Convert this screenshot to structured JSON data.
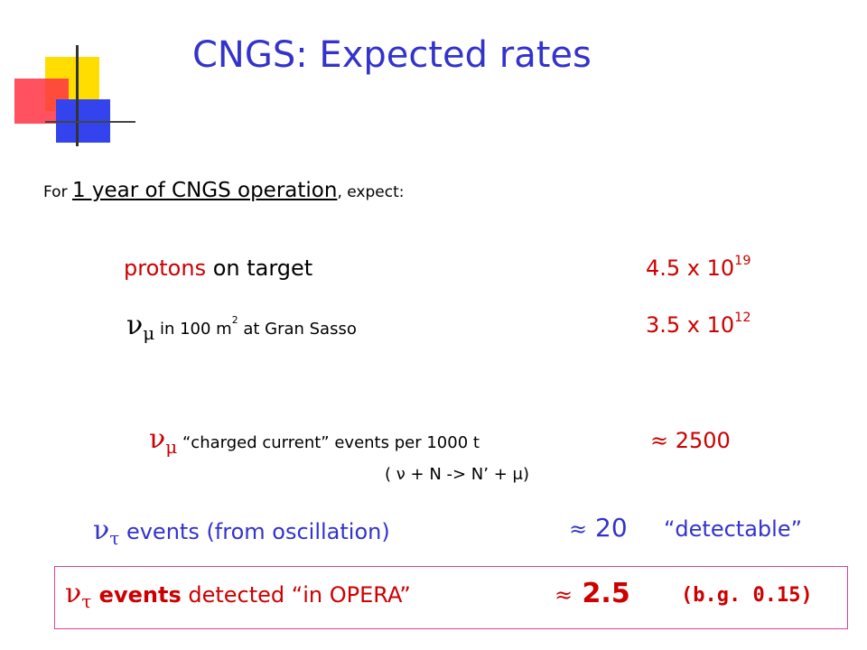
{
  "title": "CNGS: Expected rates",
  "intro": {
    "prefix": "For ",
    "emphasis": "1 year of CNGS operation",
    "suffix": ", expect:"
  },
  "rows": {
    "protons": {
      "label_a": "protons",
      "label_b": " on target",
      "value_base": "4.5 x 10",
      "value_exp": "19"
    },
    "numu_flux": {
      "symbol": "ν",
      "subscript": "μ",
      "label_a": " in 100 m",
      "label_sup": "2",
      "label_b": " at Gran Sasso",
      "value_base": "3.5 x 10",
      "value_exp": "12"
    },
    "cc_events": {
      "symbol": "ν",
      "subscript": "μ",
      "label": " “charged current” events per 1000 t",
      "approx": "≈",
      "value": " 2500",
      "reaction": "( ν + N -> N’ + μ)"
    },
    "tau_events": {
      "symbol": "ν",
      "subscript": "τ",
      "label": " events (from oscillation)",
      "approx": "≈",
      "value": " 20",
      "note": "“detectable”"
    },
    "opera": {
      "symbol": "ν",
      "subscript": "τ",
      "label_bold": " events",
      "label": " detected “in OPERA”",
      "approx": "≈",
      "value": " 2.5",
      "bg": "(b.g. 0.15)"
    }
  },
  "colors": {
    "title": "#3333cc",
    "accent_red": "#cc0000",
    "accent_blue": "#3333cc",
    "box_border": "#e0409a",
    "logo_yellow": "#ffdd00",
    "logo_red": "#ff3344",
    "logo_blue": "#3344ee"
  }
}
